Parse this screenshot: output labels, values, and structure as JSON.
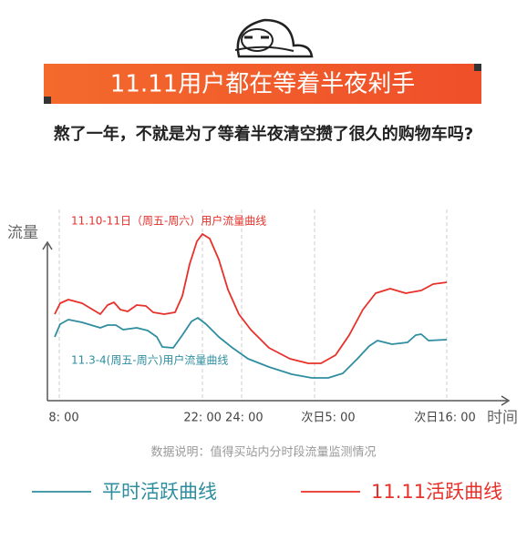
{
  "banner": {
    "title": "11.11用户都在等着半夜剁手"
  },
  "subtitle": "熬了一年，不就是为了等着半夜清空攒了很久的购物车吗?",
  "chart": {
    "y_label": "流量",
    "x_label": "时间",
    "x_ticks": [
      "8: 00",
      "22: 00 24: 00",
      "次日5: 00",
      "次日16: 00"
    ],
    "series_labels": [
      "11.10-11日（周五-周六）用户流量曲线",
      "11.3-4(周五-周六)用户流量曲线"
    ]
  },
  "note": "数据说明：值得买站内分时段流量监测情况",
  "legend": [
    "平时活跃曲线",
    "11.11活跃曲线"
  ]
}
